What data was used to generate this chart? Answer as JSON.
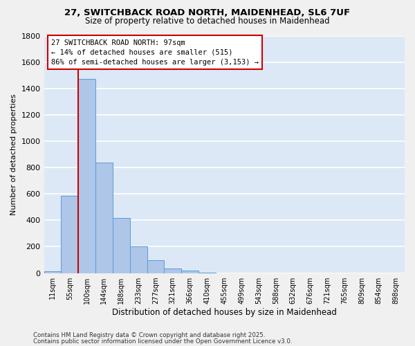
{
  "title": "27, SWITCHBACK ROAD NORTH, MAIDENHEAD, SL6 7UF",
  "subtitle": "Size of property relative to detached houses in Maidenhead",
  "xlabel": "Distribution of detached houses by size in Maidenhead",
  "ylabel": "Number of detached properties",
  "bin_labels": [
    "11sqm",
    "55sqm",
    "100sqm",
    "144sqm",
    "188sqm",
    "233sqm",
    "277sqm",
    "321sqm",
    "366sqm",
    "410sqm",
    "455sqm",
    "499sqm",
    "543sqm",
    "588sqm",
    "632sqm",
    "676sqm",
    "721sqm",
    "765sqm",
    "809sqm",
    "854sqm",
    "898sqm"
  ],
  "bar_values": [
    15,
    585,
    1470,
    835,
    415,
    200,
    95,
    32,
    18,
    3,
    0,
    0,
    0,
    0,
    0,
    0,
    0,
    0,
    0,
    0,
    0
  ],
  "bar_color": "#aec6e8",
  "bar_edge_color": "#5b9bd5",
  "bg_color": "#dce8f5",
  "grid_color": "#ffffff",
  "vline_color": "#cc0000",
  "annotation_text": "27 SWITCHBACK ROAD NORTH: 97sqm\n← 14% of detached houses are smaller (515)\n86% of semi-detached houses are larger (3,153) →",
  "annotation_box_color": "#ffffff",
  "annotation_box_edge": "#cc0000",
  "ylim": [
    0,
    1800
  ],
  "yticks": [
    0,
    200,
    400,
    600,
    800,
    1000,
    1200,
    1400,
    1600,
    1800
  ],
  "footer1": "Contains HM Land Registry data © Crown copyright and database right 2025.",
  "footer2": "Contains public sector information licensed under the Open Government Licence v3.0."
}
